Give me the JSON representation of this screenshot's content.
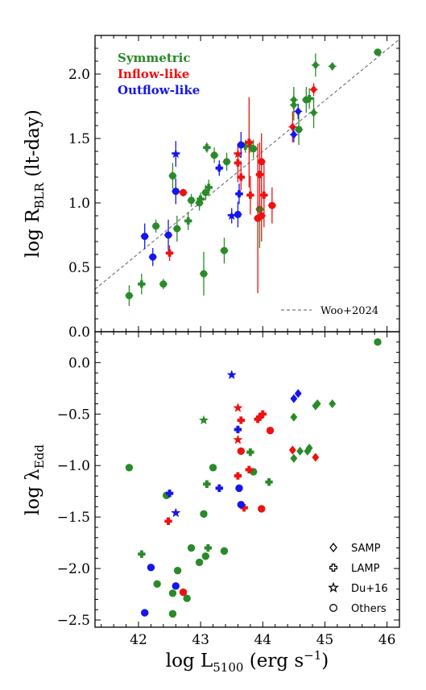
{
  "colors": {
    "Symmetric": "#2a8a2a",
    "Inflow-like": "#ee1111",
    "Outflow-like": "#1515ee"
  },
  "chart_data": [
    {
      "type": "scatter",
      "xlim": [
        41.3,
        46.2
      ],
      "ylim": [
        0.0,
        2.3
      ],
      "xticks": [],
      "yticks": [
        "0.0",
        "0.5",
        "1.0",
        "1.5",
        "2.0"
      ],
      "ylabel_main": "log R",
      "ylabel_sub": "BLR",
      "ylabel_tail": " (lt-day)",
      "legend": [
        {
          "group": "Symmetric",
          "label": "Symmetric"
        },
        {
          "group": "Inflow-like",
          "label": "Inflow-like"
        },
        {
          "group": "Outflow-like",
          "label": "Outflow-like"
        }
      ],
      "reference_line": {
        "label": "Woo+2024",
        "x": [
          41.3,
          46.2
        ],
        "y": [
          0.33,
          2.27
        ]
      },
      "points": [
        {
          "x": 41.85,
          "y": 0.28,
          "g": "Symmetric",
          "m": "circle",
          "e": 0.08
        },
        {
          "x": 42.05,
          "y": 0.37,
          "g": "Symmetric",
          "m": "cross",
          "e": 0.08
        },
        {
          "x": 42.28,
          "y": 0.82,
          "g": "Symmetric",
          "m": "circle",
          "e": 0.05
        },
        {
          "x": 42.4,
          "y": 0.37,
          "g": "Symmetric",
          "m": "circle",
          "e": 0.04
        },
        {
          "x": 42.55,
          "y": 1.21,
          "g": "Symmetric",
          "m": "circle",
          "e": 0.1
        },
        {
          "x": 42.62,
          "y": 0.8,
          "g": "Symmetric",
          "m": "circle",
          "e": 0.1
        },
        {
          "x": 42.8,
          "y": 0.86,
          "g": "Symmetric",
          "m": "cross",
          "e": 0.07
        },
        {
          "x": 42.85,
          "y": 1.02,
          "g": "Symmetric",
          "m": "circle",
          "e": 0.05
        },
        {
          "x": 42.98,
          "y": 1.0,
          "g": "Symmetric",
          "m": "circle",
          "e": 0.06
        },
        {
          "x": 43.0,
          "y": 1.03,
          "g": "Symmetric",
          "m": "cross",
          "e": 0.05
        },
        {
          "x": 43.05,
          "y": 0.45,
          "g": "Symmetric",
          "m": "circle",
          "e": 0.17
        },
        {
          "x": 43.08,
          "y": 1.08,
          "g": "Symmetric",
          "m": "circle",
          "e": 0.06
        },
        {
          "x": 43.1,
          "y": 1.43,
          "g": "Symmetric",
          "m": "cross",
          "e": 0.04
        },
        {
          "x": 43.13,
          "y": 1.12,
          "g": "Symmetric",
          "m": "cross",
          "e": 0.06
        },
        {
          "x": 43.22,
          "y": 1.37,
          "g": "Symmetric",
          "m": "circle",
          "e": 0.06
        },
        {
          "x": 43.38,
          "y": 0.63,
          "g": "Symmetric",
          "m": "circle",
          "e": 0.1
        },
        {
          "x": 43.42,
          "y": 1.32,
          "g": "Symmetric",
          "m": "circle",
          "e": 0.07
        },
        {
          "x": 43.72,
          "y": 1.44,
          "g": "Symmetric",
          "m": "cross",
          "e": 0.05
        },
        {
          "x": 43.8,
          "y": 1.44,
          "g": "Symmetric",
          "m": "cross",
          "e": 0.05
        },
        {
          "x": 43.85,
          "y": 1.42,
          "g": "Symmetric",
          "m": "circle",
          "e": 0.07
        },
        {
          "x": 43.95,
          "y": 0.95,
          "g": "Symmetric",
          "m": "circle",
          "e": 0.3
        },
        {
          "x": 44.5,
          "y": 1.8,
          "g": "Symmetric",
          "m": "diamond",
          "e": 0.1
        },
        {
          "x": 44.5,
          "y": 1.76,
          "g": "Symmetric",
          "m": "diamond",
          "e": 0.12
        },
        {
          "x": 44.58,
          "y": 1.57,
          "g": "Symmetric",
          "m": "circle",
          "e": 0.12
        },
        {
          "x": 44.7,
          "y": 1.8,
          "g": "Symmetric",
          "m": "circle",
          "e": 0.1
        },
        {
          "x": 44.75,
          "y": 1.81,
          "g": "Symmetric",
          "m": "cross",
          "e": 0.08
        },
        {
          "x": 44.82,
          "y": 1.7,
          "g": "Symmetric",
          "m": "diamond",
          "e": 0.12
        },
        {
          "x": 44.85,
          "y": 2.07,
          "g": "Symmetric",
          "m": "diamond",
          "e": 0.09
        },
        {
          "x": 45.12,
          "y": 2.06,
          "g": "Symmetric",
          "m": "diamond",
          "e": 0.03
        },
        {
          "x": 45.85,
          "y": 2.17,
          "g": "Symmetric",
          "m": "circle",
          "e": 0.02
        },
        {
          "x": 42.5,
          "y": 0.61,
          "g": "Inflow-like",
          "m": "cross",
          "e": 0.06
        },
        {
          "x": 42.72,
          "y": 1.08,
          "g": "Inflow-like",
          "m": "circle",
          "e": 0.03
        },
        {
          "x": 43.6,
          "y": 1.38,
          "g": "Inflow-like",
          "m": "star",
          "e": 0.06
        },
        {
          "x": 43.6,
          "y": 1.31,
          "g": "Inflow-like",
          "m": "cross",
          "e": 0.15
        },
        {
          "x": 43.65,
          "y": 1.2,
          "g": "Inflow-like",
          "m": "cross",
          "e": 0.1
        },
        {
          "x": 43.78,
          "y": 1.47,
          "g": "Inflow-like",
          "m": "cross",
          "e": 0.35
        },
        {
          "x": 43.8,
          "y": 1.06,
          "g": "Inflow-like",
          "m": "cross",
          "e": 0.15
        },
        {
          "x": 43.92,
          "y": 0.88,
          "g": "Inflow-like",
          "m": "circle",
          "e": 0.58
        },
        {
          "x": 43.95,
          "y": 1.22,
          "g": "Inflow-like",
          "m": "cross",
          "e": 0.25
        },
        {
          "x": 43.98,
          "y": 1.32,
          "g": "Inflow-like",
          "m": "circle",
          "e": 0.22
        },
        {
          "x": 43.98,
          "y": 0.9,
          "g": "Inflow-like",
          "m": "circle",
          "e": 0.2
        },
        {
          "x": 44.02,
          "y": 1.06,
          "g": "Inflow-like",
          "m": "cross",
          "e": 0.25
        },
        {
          "x": 44.15,
          "y": 0.98,
          "g": "Inflow-like",
          "m": "circle",
          "e": 0.14
        },
        {
          "x": 44.48,
          "y": 1.59,
          "g": "Inflow-like",
          "m": "diamond",
          "e": 0.12
        },
        {
          "x": 44.82,
          "y": 1.88,
          "g": "Inflow-like",
          "m": "diamond",
          "e": 0.05
        },
        {
          "x": 42.1,
          "y": 0.74,
          "g": "Outflow-like",
          "m": "circle",
          "e": 0.1
        },
        {
          "x": 42.23,
          "y": 0.58,
          "g": "Outflow-like",
          "m": "circle",
          "e": 0.07
        },
        {
          "x": 42.48,
          "y": 0.75,
          "g": "Outflow-like",
          "m": "circle",
          "e": 0.12
        },
        {
          "x": 42.6,
          "y": 1.38,
          "g": "Outflow-like",
          "m": "star",
          "e": 0.1
        },
        {
          "x": 42.6,
          "y": 1.09,
          "g": "Outflow-like",
          "m": "circle",
          "e": 0.1
        },
        {
          "x": 43.3,
          "y": 1.27,
          "g": "Outflow-like",
          "m": "cross",
          "e": 0.06
        },
        {
          "x": 43.5,
          "y": 0.9,
          "g": "Outflow-like",
          "m": "star",
          "e": 0.06
        },
        {
          "x": 43.6,
          "y": 0.91,
          "g": "Outflow-like",
          "m": "circle",
          "e": 0.1
        },
        {
          "x": 43.62,
          "y": 1.07,
          "g": "Outflow-like",
          "m": "cross",
          "e": 0.08
        },
        {
          "x": 43.65,
          "y": 1.45,
          "g": "Outflow-like",
          "m": "circle",
          "e": 0.1
        },
        {
          "x": 44.5,
          "y": 1.53,
          "g": "Outflow-like",
          "m": "diamond",
          "e": 0.06
        },
        {
          "x": 44.57,
          "y": 1.71,
          "g": "Outflow-like",
          "m": "diamond",
          "e": 0.06
        }
      ]
    },
    {
      "type": "scatter",
      "xlim": [
        41.3,
        46.2
      ],
      "ylim": [
        -2.57,
        0.3
      ],
      "xticks": [
        "42",
        "43",
        "44",
        "45",
        "46"
      ],
      "yticks": [
        "0.0",
        "−0.5",
        "−1.0",
        "−1.5",
        "−2.0",
        "−2.5"
      ],
      "ytick_values": [
        0.0,
        -0.5,
        -1.0,
        -1.5,
        -2.0,
        -2.5
      ],
      "xlabel_main": "log L",
      "xlabel_sub": "5100",
      "xlabel_tail": " (erg s",
      "xlabel_sup": "−1",
      "xlabel_close": ")",
      "ylabel_main": "log λ",
      "ylabel_sub": "Edd",
      "marker_legend": [
        {
          "marker": "diamond",
          "label": "SAMP"
        },
        {
          "marker": "cross",
          "label": "LAMP"
        },
        {
          "marker": "star",
          "label": "Du+16"
        },
        {
          "marker": "circle",
          "label": "Others"
        }
      ],
      "points": [
        {
          "x": 41.85,
          "y": -1.02,
          "g": "Symmetric",
          "m": "circle"
        },
        {
          "x": 42.05,
          "y": -1.86,
          "g": "Symmetric",
          "m": "cross"
        },
        {
          "x": 42.3,
          "y": -2.15,
          "g": "Symmetric",
          "m": "circle"
        },
        {
          "x": 42.45,
          "y": -1.29,
          "g": "Symmetric",
          "m": "circle"
        },
        {
          "x": 42.55,
          "y": -2.24,
          "g": "Symmetric",
          "m": "circle"
        },
        {
          "x": 42.55,
          "y": -2.44,
          "g": "Symmetric",
          "m": "circle"
        },
        {
          "x": 42.63,
          "y": -2.02,
          "g": "Symmetric",
          "m": "circle"
        },
        {
          "x": 42.78,
          "y": -2.29,
          "g": "Symmetric",
          "m": "circle"
        },
        {
          "x": 42.85,
          "y": -1.8,
          "g": "Symmetric",
          "m": "circle"
        },
        {
          "x": 42.98,
          "y": -1.94,
          "g": "Symmetric",
          "m": "circle"
        },
        {
          "x": 43.05,
          "y": -0.56,
          "g": "Symmetric",
          "m": "star"
        },
        {
          "x": 43.05,
          "y": -1.47,
          "g": "Symmetric",
          "m": "circle"
        },
        {
          "x": 43.08,
          "y": -1.88,
          "g": "Symmetric",
          "m": "circle"
        },
        {
          "x": 43.1,
          "y": -1.18,
          "g": "Symmetric",
          "m": "cross"
        },
        {
          "x": 43.12,
          "y": -1.8,
          "g": "Symmetric",
          "m": "cross"
        },
        {
          "x": 43.2,
          "y": -1.02,
          "g": "Symmetric",
          "m": "circle"
        },
        {
          "x": 43.38,
          "y": -1.83,
          "g": "Symmetric",
          "m": "circle"
        },
        {
          "x": 43.8,
          "y": -0.87,
          "g": "Symmetric",
          "m": "cross"
        },
        {
          "x": 43.85,
          "y": -1.06,
          "g": "Symmetric",
          "m": "circle"
        },
        {
          "x": 44.1,
          "y": -1.16,
          "g": "Symmetric",
          "m": "cross"
        },
        {
          "x": 44.5,
          "y": -0.53,
          "g": "Symmetric",
          "m": "diamond"
        },
        {
          "x": 44.5,
          "y": -0.93,
          "g": "Symmetric",
          "m": "diamond"
        },
        {
          "x": 44.6,
          "y": -0.86,
          "g": "Symmetric",
          "m": "diamond"
        },
        {
          "x": 44.72,
          "y": -0.86,
          "g": "Symmetric",
          "m": "diamond"
        },
        {
          "x": 44.75,
          "y": -0.83,
          "g": "Symmetric",
          "m": "diamond"
        },
        {
          "x": 44.85,
          "y": -0.42,
          "g": "Symmetric",
          "m": "diamond"
        },
        {
          "x": 44.88,
          "y": -0.4,
          "g": "Symmetric",
          "m": "diamond"
        },
        {
          "x": 45.12,
          "y": -0.4,
          "g": "Symmetric",
          "m": "diamond"
        },
        {
          "x": 45.85,
          "y": 0.2,
          "g": "Symmetric",
          "m": "circle"
        },
        {
          "x": 42.48,
          "y": -1.54,
          "g": "Inflow-like",
          "m": "cross"
        },
        {
          "x": 42.72,
          "y": -2.23,
          "g": "Inflow-like",
          "m": "circle"
        },
        {
          "x": 43.6,
          "y": -0.44,
          "g": "Inflow-like",
          "m": "star"
        },
        {
          "x": 43.6,
          "y": -0.75,
          "g": "Inflow-like",
          "m": "star"
        },
        {
          "x": 43.65,
          "y": -0.56,
          "g": "Inflow-like",
          "m": "cross"
        },
        {
          "x": 43.65,
          "y": -0.86,
          "g": "Inflow-like",
          "m": "circle"
        },
        {
          "x": 43.6,
          "y": -1.1,
          "g": "Inflow-like",
          "m": "cross"
        },
        {
          "x": 43.7,
          "y": -1.41,
          "g": "Inflow-like",
          "m": "cross"
        },
        {
          "x": 43.78,
          "y": -1.04,
          "g": "Inflow-like",
          "m": "cross"
        },
        {
          "x": 43.92,
          "y": -0.55,
          "g": "Inflow-like",
          "m": "cross"
        },
        {
          "x": 43.95,
          "y": -0.53,
          "g": "Inflow-like",
          "m": "cross"
        },
        {
          "x": 44.0,
          "y": -0.5,
          "g": "Inflow-like",
          "m": "cross"
        },
        {
          "x": 43.98,
          "y": -1.42,
          "g": "Inflow-like",
          "m": "circle"
        },
        {
          "x": 44.12,
          "y": -0.66,
          "g": "Inflow-like",
          "m": "circle"
        },
        {
          "x": 44.48,
          "y": -0.85,
          "g": "Inflow-like",
          "m": "diamond"
        },
        {
          "x": 44.85,
          "y": -0.92,
          "g": "Inflow-like",
          "m": "diamond"
        },
        {
          "x": 42.1,
          "y": -2.43,
          "g": "Outflow-like",
          "m": "circle"
        },
        {
          "x": 42.2,
          "y": -1.99,
          "g": "Outflow-like",
          "m": "circle"
        },
        {
          "x": 42.5,
          "y": -1.27,
          "g": "Outflow-like",
          "m": "cross"
        },
        {
          "x": 42.6,
          "y": -1.46,
          "g": "Outflow-like",
          "m": "star"
        },
        {
          "x": 42.6,
          "y": -2.17,
          "g": "Outflow-like",
          "m": "circle"
        },
        {
          "x": 43.3,
          "y": -1.22,
          "g": "Outflow-like",
          "m": "cross"
        },
        {
          "x": 43.5,
          "y": -0.12,
          "g": "Outflow-like",
          "m": "star"
        },
        {
          "x": 43.6,
          "y": -0.65,
          "g": "Outflow-like",
          "m": "cross"
        },
        {
          "x": 43.62,
          "y": -1.22,
          "g": "Outflow-like",
          "m": "circle"
        },
        {
          "x": 43.65,
          "y": -1.38,
          "g": "Outflow-like",
          "m": "circle"
        },
        {
          "x": 44.5,
          "y": -0.35,
          "g": "Outflow-like",
          "m": "diamond"
        },
        {
          "x": 44.57,
          "y": -0.3,
          "g": "Outflow-like",
          "m": "diamond"
        }
      ]
    }
  ]
}
